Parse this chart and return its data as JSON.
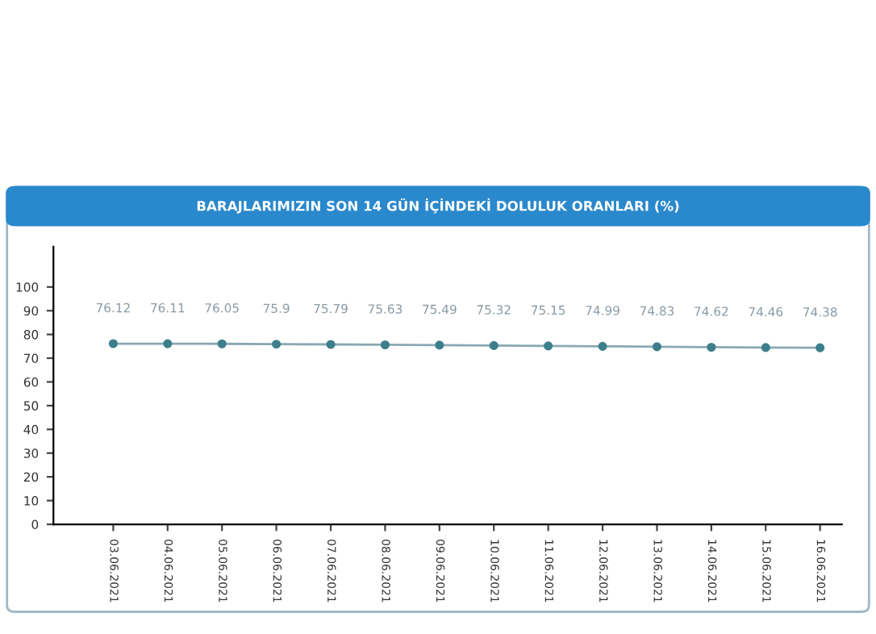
{
  "chart_data": {
    "type": "line",
    "title": "BARAJLARIMIZIN SON 14 GÜN İÇİNDEKİ DOLULUK ORANLARI (%)",
    "categories": [
      "03.06.2021",
      "04.06.2021",
      "05.06.2021",
      "06.06.2021",
      "07.06.2021",
      "08.06.2021",
      "09.06.2021",
      "10.06.2021",
      "11.06.2021",
      "12.06.2021",
      "13.06.2021",
      "14.06.2021",
      "15.06.2021",
      "16.06.2021"
    ],
    "series": [
      {
        "color": "#3d7f8c",
        "values": [
          76.12,
          76.11,
          76.05,
          75.9,
          75.79,
          75.63,
          75.49,
          75.32,
          75.15,
          74.99,
          74.83,
          74.62,
          74.46,
          74.38
        ]
      }
    ],
    "ylim": [
      0,
      117
    ],
    "yticks": [
      0,
      10,
      20,
      30,
      40,
      50,
      60,
      70,
      80,
      90,
      100
    ],
    "data_labels": true,
    "marker": "circle",
    "line_style": "solid",
    "grid": false,
    "legend": false
  }
}
